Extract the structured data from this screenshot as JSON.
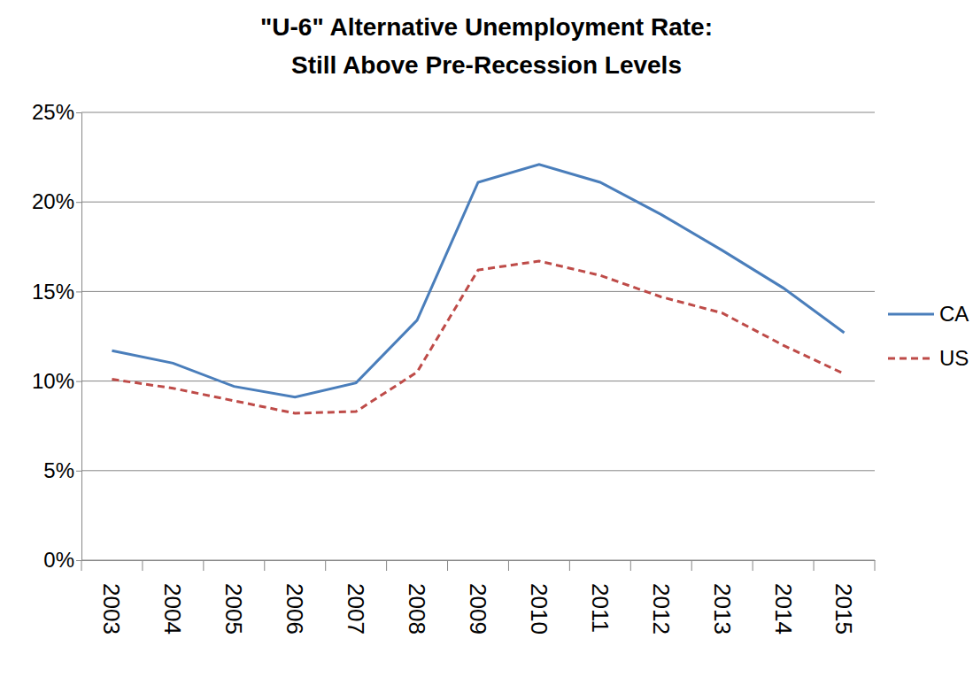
{
  "chart_data": {
    "type": "line",
    "title": "\"U-6\" Alternative Unemployment Rate:\nStill Above Pre-Recession Levels",
    "categories": [
      "2003",
      "2004",
      "2005",
      "2006",
      "2007",
      "2008",
      "2009",
      "2010",
      "2011",
      "2012",
      "2013",
      "2014",
      "2015"
    ],
    "series": [
      {
        "name": "CA",
        "color": "#4a7ebb",
        "line_style": "solid",
        "values": [
          11.7,
          11.0,
          9.7,
          9.1,
          9.9,
          13.4,
          21.1,
          22.1,
          21.1,
          19.3,
          17.3,
          15.2,
          12.7
        ]
      },
      {
        "name": "US",
        "color": "#be4b48",
        "line_style": "dashed",
        "values": [
          10.1,
          9.6,
          8.9,
          8.2,
          8.3,
          10.5,
          16.2,
          16.7,
          15.9,
          14.7,
          13.8,
          12.0,
          10.4
        ]
      }
    ],
    "ylim": [
      0,
      25
    ],
    "yticks": [
      {
        "value": 0,
        "label": "0%"
      },
      {
        "value": 5,
        "label": "5%"
      },
      {
        "value": 10,
        "label": "10%"
      },
      {
        "value": 15,
        "label": "15%"
      },
      {
        "value": 20,
        "label": "20%"
      },
      {
        "value": 25,
        "label": "25%"
      }
    ],
    "grid": true,
    "legend": "right"
  }
}
